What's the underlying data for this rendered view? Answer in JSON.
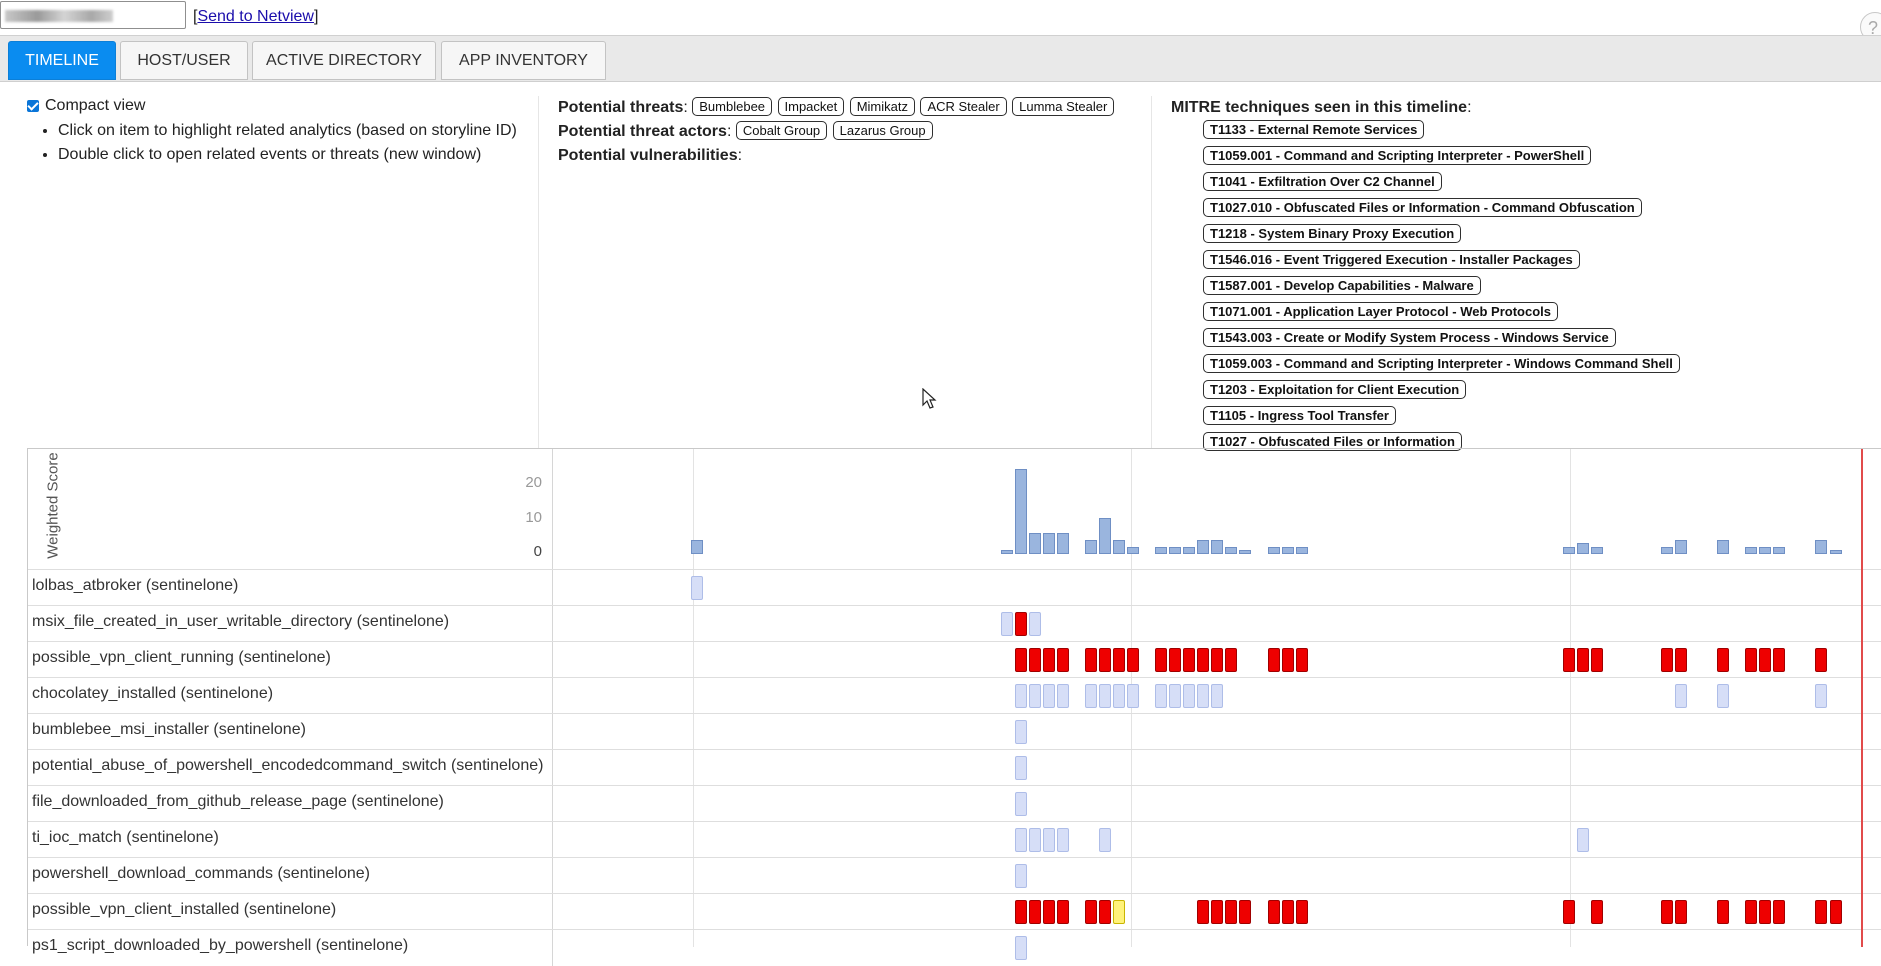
{
  "top": {
    "host_value": "",
    "netview_prefix": "[",
    "netview_link": "Send to Netview",
    "netview_suffix": "]",
    "help": "?"
  },
  "tabs": [
    {
      "label": "TIMELINE",
      "active": true
    },
    {
      "label": "HOST/USER",
      "active": false
    },
    {
      "label": "ACTIVE DIRECTORY",
      "active": false
    },
    {
      "label": "APP INVENTORY",
      "active": false
    }
  ],
  "left_panel": {
    "compact_view": "Compact view",
    "compact_checked": true,
    "tips": [
      "Click on item to highlight related analytics (based on storyline ID)",
      "Double click to open related events or threats (new window)"
    ]
  },
  "threats": {
    "threats_label": "Potential threats",
    "threats": [
      "Bumblebee",
      "Impacket",
      "Mimikatz",
      "ACR Stealer",
      "Lumma Stealer"
    ],
    "actors_label": "Potential threat actors",
    "actors": [
      "Cobalt Group",
      "Lazarus Group"
    ],
    "vuln_label": "Potential vulnerabilities",
    "colon": ":"
  },
  "mitre": {
    "title": "MITRE techniques seen in this timeline",
    "colon": ":",
    "items": [
      "T1133 - External Remote Services",
      "T1059.001 - Command and Scripting Interpreter - PowerShell",
      "T1041 - Exfiltration Over C2 Channel",
      "T1027.010 - Obfuscated Files or Information - Command Obfuscation",
      "T1218 - System Binary Proxy Execution",
      "T1546.016 - Event Triggered Execution - Installer Packages",
      "T1587.001 - Develop Capabilities - Malware",
      "T1071.001 - Application Layer Protocol - Web Protocols",
      "T1543.003 - Create or Modify System Process - Windows Service",
      "T1059.003 - Command and Scripting Interpreter - Windows Command Shell",
      "T1203 - Exploitation for Client Execution",
      "T1105 - Ingress Tool Transfer",
      "T1027 - Obfuscated Files or Information"
    ]
  },
  "timeline": {
    "ylabel": "Weighted Score",
    "yticks": [
      "20",
      "10",
      "0"
    ],
    "score_bars": [
      {
        "slot": 9,
        "v": 4
      },
      {
        "slot": 31,
        "v": 1
      },
      {
        "slot": 32,
        "v": 24
      },
      {
        "slot": 33,
        "v": 6
      },
      {
        "slot": 34,
        "v": 6
      },
      {
        "slot": 35,
        "v": 6
      },
      {
        "slot": 37,
        "v": 4
      },
      {
        "slot": 38,
        "v": 10
      },
      {
        "slot": 39,
        "v": 4
      },
      {
        "slot": 40,
        "v": 2
      },
      {
        "slot": 42,
        "v": 2
      },
      {
        "slot": 43,
        "v": 2
      },
      {
        "slot": 44,
        "v": 2
      },
      {
        "slot": 45,
        "v": 4
      },
      {
        "slot": 46,
        "v": 4
      },
      {
        "slot": 47,
        "v": 2
      },
      {
        "slot": 48,
        "v": 1
      },
      {
        "slot": 50,
        "v": 2
      },
      {
        "slot": 51,
        "v": 2
      },
      {
        "slot": 52,
        "v": 2
      },
      {
        "slot": 71,
        "v": 2
      },
      {
        "slot": 72,
        "v": 3
      },
      {
        "slot": 73,
        "v": 2
      },
      {
        "slot": 78,
        "v": 2
      },
      {
        "slot": 79,
        "v": 4
      },
      {
        "slot": 82,
        "v": 4
      },
      {
        "slot": 84,
        "v": 2
      },
      {
        "slot": 85,
        "v": 2
      },
      {
        "slot": 86,
        "v": 2
      },
      {
        "slot": 89,
        "v": 4
      },
      {
        "slot": 90,
        "v": 1
      }
    ],
    "rows": [
      {
        "name": "lolbas_atbroker (sentinelone)",
        "marks": [
          {
            "slot": 9,
            "c": "light"
          }
        ]
      },
      {
        "name": "msix_file_created_in_user_writable_directory (sentinelone)",
        "marks": [
          {
            "slot": 31,
            "c": "light"
          },
          {
            "slot": 32,
            "c": "red"
          },
          {
            "slot": 33,
            "c": "light"
          }
        ]
      },
      {
        "name": "possible_vpn_client_running (sentinelone)",
        "marks": [
          {
            "slot": 32,
            "c": "red"
          },
          {
            "slot": 33,
            "c": "red"
          },
          {
            "slot": 34,
            "c": "red"
          },
          {
            "slot": 35,
            "c": "red"
          },
          {
            "slot": 37,
            "c": "red"
          },
          {
            "slot": 38,
            "c": "red"
          },
          {
            "slot": 39,
            "c": "red"
          },
          {
            "slot": 40,
            "c": "red"
          },
          {
            "slot": 42,
            "c": "red"
          },
          {
            "slot": 43,
            "c": "red"
          },
          {
            "slot": 44,
            "c": "red"
          },
          {
            "slot": 45,
            "c": "red"
          },
          {
            "slot": 46,
            "c": "red"
          },
          {
            "slot": 47,
            "c": "red"
          },
          {
            "slot": 50,
            "c": "red"
          },
          {
            "slot": 51,
            "c": "red"
          },
          {
            "slot": 52,
            "c": "red"
          },
          {
            "slot": 71,
            "c": "red"
          },
          {
            "slot": 72,
            "c": "red"
          },
          {
            "slot": 73,
            "c": "red"
          },
          {
            "slot": 78,
            "c": "red"
          },
          {
            "slot": 79,
            "c": "red"
          },
          {
            "slot": 82,
            "c": "red"
          },
          {
            "slot": 84,
            "c": "red"
          },
          {
            "slot": 85,
            "c": "red"
          },
          {
            "slot": 86,
            "c": "red"
          },
          {
            "slot": 89,
            "c": "red"
          }
        ]
      },
      {
        "name": "chocolatey_installed (sentinelone)",
        "marks": [
          {
            "slot": 32,
            "c": "light"
          },
          {
            "slot": 33,
            "c": "light"
          },
          {
            "slot": 34,
            "c": "light"
          },
          {
            "slot": 35,
            "c": "light"
          },
          {
            "slot": 37,
            "c": "light"
          },
          {
            "slot": 38,
            "c": "light"
          },
          {
            "slot": 39,
            "c": "light"
          },
          {
            "slot": 40,
            "c": "light"
          },
          {
            "slot": 42,
            "c": "light"
          },
          {
            "slot": 43,
            "c": "light"
          },
          {
            "slot": 44,
            "c": "light"
          },
          {
            "slot": 45,
            "c": "light"
          },
          {
            "slot": 46,
            "c": "light"
          },
          {
            "slot": 79,
            "c": "light"
          },
          {
            "slot": 82,
            "c": "light"
          },
          {
            "slot": 89,
            "c": "light"
          }
        ]
      },
      {
        "name": "bumblebee_msi_installer (sentinelone)",
        "marks": [
          {
            "slot": 32,
            "c": "light"
          }
        ]
      },
      {
        "name": "potential_abuse_of_powershell_encodedcommand_switch (sentinelone)",
        "marks": [
          {
            "slot": 32,
            "c": "light"
          }
        ]
      },
      {
        "name": "file_downloaded_from_github_release_page (sentinelone)",
        "marks": [
          {
            "slot": 32,
            "c": "light"
          }
        ]
      },
      {
        "name": "ti_ioc_match (sentinelone)",
        "marks": [
          {
            "slot": 32,
            "c": "light"
          },
          {
            "slot": 33,
            "c": "light"
          },
          {
            "slot": 34,
            "c": "light"
          },
          {
            "slot": 35,
            "c": "light"
          },
          {
            "slot": 38,
            "c": "light"
          },
          {
            "slot": 72,
            "c": "light"
          }
        ]
      },
      {
        "name": "powershell_download_commands (sentinelone)",
        "marks": [
          {
            "slot": 32,
            "c": "light"
          }
        ]
      },
      {
        "name": "possible_vpn_client_installed (sentinelone)",
        "marks": [
          {
            "slot": 32,
            "c": "red"
          },
          {
            "slot": 33,
            "c": "red"
          },
          {
            "slot": 34,
            "c": "red"
          },
          {
            "slot": 35,
            "c": "red"
          },
          {
            "slot": 37,
            "c": "red"
          },
          {
            "slot": 38,
            "c": "red"
          },
          {
            "slot": 39,
            "c": "yellow"
          },
          {
            "slot": 45,
            "c": "red"
          },
          {
            "slot": 46,
            "c": "red"
          },
          {
            "slot": 47,
            "c": "red"
          },
          {
            "slot": 48,
            "c": "red"
          },
          {
            "slot": 50,
            "c": "red"
          },
          {
            "slot": 51,
            "c": "red"
          },
          {
            "slot": 52,
            "c": "red"
          },
          {
            "slot": 71,
            "c": "red"
          },
          {
            "slot": 73,
            "c": "red"
          },
          {
            "slot": 78,
            "c": "red"
          },
          {
            "slot": 79,
            "c": "red"
          },
          {
            "slot": 82,
            "c": "red"
          },
          {
            "slot": 84,
            "c": "red"
          },
          {
            "slot": 85,
            "c": "red"
          },
          {
            "slot": 86,
            "c": "red"
          },
          {
            "slot": 89,
            "c": "red"
          },
          {
            "slot": 90,
            "c": "red"
          }
        ]
      },
      {
        "name": "ps1_script_downloaded_by_powershell (sentinelone)",
        "marks": [
          {
            "slot": 32,
            "c": "light"
          }
        ]
      }
    ]
  },
  "colors": {
    "tab_active": "#0a8cf0",
    "bar": "#9ab5de",
    "bar_border": "#6f8fc4",
    "light": "#d6def7",
    "light_border": "#aebde8",
    "red": "#ee0000",
    "red_border": "#a00000",
    "yellow": "#fff27a",
    "yellow_border": "#c9b500"
  }
}
